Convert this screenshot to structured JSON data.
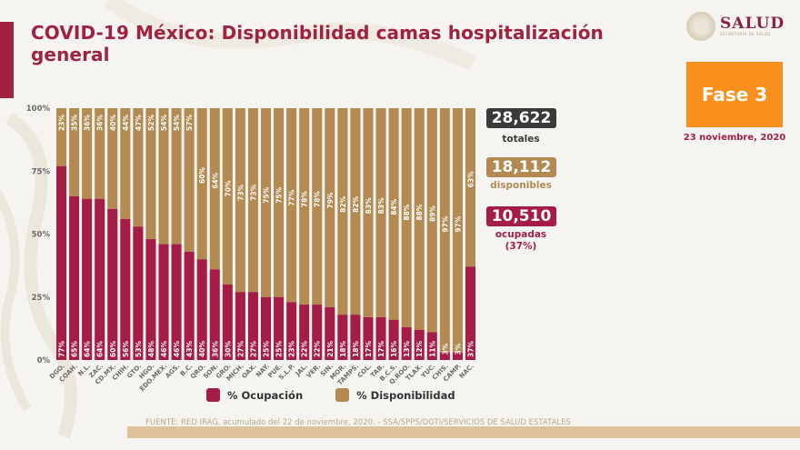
{
  "header": {
    "title": "COVID-19 México: Disponibilidad camas hospitalización general",
    "logo_text": "SALUD",
    "logo_subtext": "SECRETARÍA DE SALUD",
    "phase_label": "Fase 3",
    "date": "23 noviembre, 2020"
  },
  "stats": {
    "total_value": "28,622",
    "total_label": "totales",
    "available_value": "18,112",
    "available_label": "disponibles",
    "occupied_value": "10,510",
    "occupied_label": "ocupadas",
    "occupied_pct": "(37%)"
  },
  "colors": {
    "occupancy": "#a51c44",
    "availability": "#b38b52",
    "total_box": "#3a3a3a",
    "phase": "#f8901d",
    "brand": "#9f2241"
  },
  "legend": {
    "occupancy_label": "% Ocupación",
    "availability_label": "% Disponibilidad"
  },
  "footer": {
    "source": "FUENTE: RED IRAG, acumulado del 22 de noviembre, 2020. -  SSA/SPPS/DGTI/SERVICIOS DE SALUD ESTATALES"
  },
  "chart_data": {
    "type": "bar",
    "stacked": true,
    "title": "COVID-19 México: Disponibilidad camas hospitalización general",
    "xlabel": "",
    "ylabel": "",
    "ylim": [
      0,
      100
    ],
    "yticks": [
      "0%",
      "25%",
      "50%",
      "75%",
      "100%"
    ],
    "grid": false,
    "legend_position": "bottom",
    "categories": [
      "DGO.",
      "COAH.",
      "N.L.",
      "ZAC.",
      "CD.MX.",
      "CHIH.",
      "GTO.",
      "HGO.",
      "EDO.MEX.",
      "AGS.",
      "B.C.",
      "QRO.",
      "SON.",
      "GRO.",
      "MICH.",
      "OAX.",
      "NAY.",
      "PUE.",
      "S.L.P.",
      "JAL.",
      "VER.",
      "SIN.",
      "MOR.",
      "TAMPS.",
      "COL.",
      "TAB.",
      "B.C.S.",
      "Q.ROO.",
      "TLAX.",
      "YUC.",
      "CHIS.",
      "CAMP.",
      "NAC."
    ],
    "series": [
      {
        "name": "% Ocupación",
        "values": [
          77,
          65,
          64,
          64,
          60,
          56,
          53,
          48,
          46,
          46,
          43,
          40,
          36,
          30,
          27,
          27,
          25,
          25,
          23,
          22,
          22,
          21,
          18,
          18,
          17,
          17,
          16,
          13,
          12,
          11,
          3,
          3,
          37
        ]
      },
      {
        "name": "% Disponibilidad",
        "values": [
          23,
          35,
          36,
          36,
          40,
          44,
          47,
          52,
          54,
          54,
          57,
          60,
          64,
          70,
          73,
          73,
          75,
          75,
          77,
          78,
          78,
          79,
          82,
          82,
          83,
          83,
          84,
          88,
          88,
          89,
          97,
          97,
          63
        ]
      }
    ]
  }
}
